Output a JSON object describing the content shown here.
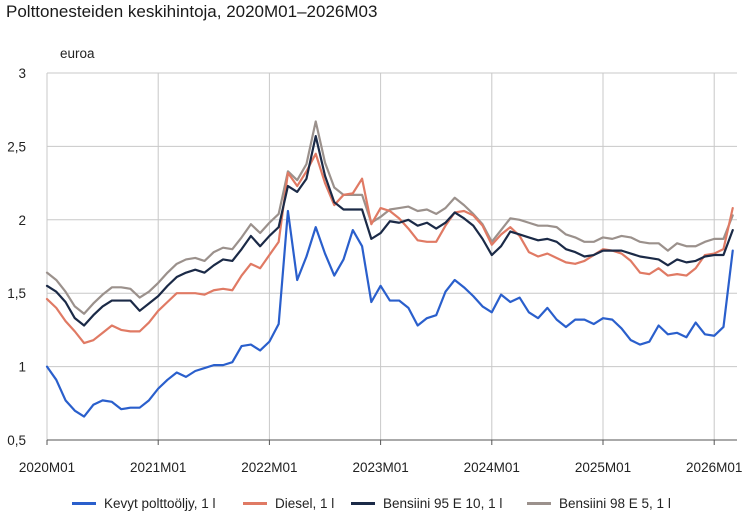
{
  "chart_data": {
    "type": "line",
    "title": "Polttonesteiden keskihintoja, 2020M01–2026M03",
    "ylabel": "euroa",
    "ylim": [
      0.5,
      3
    ],
    "yticks": [
      "0,5",
      "1",
      "1,5",
      "2",
      "2,5",
      "3"
    ],
    "xticks": [
      "2020M01",
      "2021M01",
      "2022M01",
      "2023M01",
      "2024M01",
      "2025M01",
      "2026M01"
    ],
    "grid": "vertical and horizontal",
    "legend_position": "bottom",
    "x": [
      "2020M01",
      "2020M02",
      "2020M03",
      "2020M04",
      "2020M05",
      "2020M06",
      "2020M07",
      "2020M08",
      "2020M09",
      "2020M10",
      "2020M11",
      "2020M12",
      "2021M01",
      "2021M02",
      "2021M03",
      "2021M04",
      "2021M05",
      "2021M06",
      "2021M07",
      "2021M08",
      "2021M09",
      "2021M10",
      "2021M11",
      "2021M12",
      "2022M01",
      "2022M02",
      "2022M03",
      "2022M04",
      "2022M05",
      "2022M06",
      "2022M07",
      "2022M08",
      "2022M09",
      "2022M10",
      "2022M11",
      "2022M12",
      "2023M01",
      "2023M02",
      "2023M03",
      "2023M04",
      "2023M05",
      "2023M06",
      "2023M07",
      "2023M08",
      "2023M09",
      "2023M10",
      "2023M11",
      "2023M12",
      "2024M01",
      "2024M02",
      "2024M03",
      "2024M04",
      "2024M05",
      "2024M06",
      "2024M07",
      "2024M08",
      "2024M09",
      "2024M10",
      "2024M11",
      "2024M12",
      "2025M01",
      "2025M02",
      "2025M03",
      "2025M04",
      "2025M05",
      "2025M06",
      "2025M07",
      "2025M08",
      "2025M09",
      "2025M10",
      "2025M11",
      "2025M12",
      "2026M01",
      "2026M02",
      "2026M03"
    ],
    "series": [
      {
        "name": "Kevyt polttoöljy, 1 l",
        "color": "#2a5fcc",
        "values": [
          1.0,
          0.91,
          0.77,
          0.7,
          0.66,
          0.74,
          0.77,
          0.76,
          0.71,
          0.72,
          0.72,
          0.77,
          0.85,
          0.91,
          0.96,
          0.93,
          0.97,
          0.99,
          1.01,
          1.01,
          1.03,
          1.14,
          1.15,
          1.11,
          1.17,
          1.29,
          2.06,
          1.59,
          1.75,
          1.95,
          1.77,
          1.62,
          1.73,
          1.93,
          1.82,
          1.44,
          1.55,
          1.45,
          1.45,
          1.4,
          1.28,
          1.33,
          1.35,
          1.51,
          1.59,
          1.54,
          1.48,
          1.41,
          1.37,
          1.49,
          1.44,
          1.47,
          1.37,
          1.33,
          1.4,
          1.32,
          1.27,
          1.32,
          1.32,
          1.29,
          1.33,
          1.32,
          1.26,
          1.18,
          1.15,
          1.17,
          1.28,
          1.22,
          1.23,
          1.2,
          1.3,
          1.22,
          1.21,
          1.27,
          1.79
        ]
      },
      {
        "name": "Diesel, 1 l",
        "color": "#e07a64",
        "values": [
          1.46,
          1.4,
          1.31,
          1.24,
          1.16,
          1.18,
          1.23,
          1.28,
          1.25,
          1.24,
          1.24,
          1.3,
          1.38,
          1.44,
          1.5,
          1.5,
          1.5,
          1.49,
          1.52,
          1.53,
          1.52,
          1.62,
          1.7,
          1.67,
          1.76,
          1.85,
          2.32,
          2.23,
          2.33,
          2.45,
          2.25,
          2.1,
          2.17,
          2.18,
          2.28,
          1.97,
          2.08,
          2.06,
          2.01,
          1.94,
          1.86,
          1.85,
          1.85,
          1.96,
          2.05,
          2.06,
          2.03,
          1.96,
          1.83,
          1.9,
          1.95,
          1.89,
          1.78,
          1.75,
          1.77,
          1.74,
          1.71,
          1.7,
          1.72,
          1.76,
          1.8,
          1.79,
          1.77,
          1.72,
          1.64,
          1.63,
          1.67,
          1.62,
          1.63,
          1.62,
          1.67,
          1.76,
          1.77,
          1.8,
          2.08
        ]
      },
      {
        "name": "Bensiini 95 E 10, 1 l",
        "color": "#1b2a47",
        "values": [
          1.55,
          1.51,
          1.44,
          1.33,
          1.28,
          1.35,
          1.41,
          1.45,
          1.45,
          1.45,
          1.38,
          1.43,
          1.48,
          1.55,
          1.61,
          1.64,
          1.66,
          1.64,
          1.69,
          1.73,
          1.72,
          1.8,
          1.89,
          1.82,
          1.89,
          1.95,
          2.23,
          2.19,
          2.28,
          2.57,
          2.3,
          2.12,
          2.07,
          2.07,
          2.07,
          1.87,
          1.91,
          1.99,
          1.98,
          2.0,
          1.96,
          1.98,
          1.94,
          1.98,
          2.05,
          2.01,
          1.96,
          1.87,
          1.76,
          1.82,
          1.92,
          1.9,
          1.88,
          1.86,
          1.87,
          1.85,
          1.8,
          1.78,
          1.75,
          1.76,
          1.79,
          1.79,
          1.79,
          1.77,
          1.75,
          1.74,
          1.73,
          1.69,
          1.73,
          1.71,
          1.72,
          1.75,
          1.76,
          1.76,
          1.93
        ]
      },
      {
        "name": "Bensiini 98 E 5, 1 l",
        "color": "#9b918c",
        "values": [
          1.64,
          1.59,
          1.51,
          1.41,
          1.36,
          1.43,
          1.49,
          1.54,
          1.54,
          1.53,
          1.47,
          1.51,
          1.57,
          1.64,
          1.7,
          1.73,
          1.74,
          1.72,
          1.78,
          1.81,
          1.8,
          1.88,
          1.97,
          1.91,
          1.98,
          2.04,
          2.33,
          2.27,
          2.38,
          2.67,
          2.39,
          2.22,
          2.17,
          2.17,
          2.17,
          1.98,
          2.02,
          2.07,
          2.08,
          2.09,
          2.06,
          2.07,
          2.04,
          2.08,
          2.15,
          2.1,
          2.04,
          1.97,
          1.85,
          1.93,
          2.01,
          2.0,
          1.98,
          1.96,
          1.96,
          1.95,
          1.9,
          1.88,
          1.85,
          1.85,
          1.88,
          1.87,
          1.89,
          1.88,
          1.85,
          1.84,
          1.84,
          1.79,
          1.84,
          1.82,
          1.82,
          1.85,
          1.87,
          1.87,
          2.03
        ]
      }
    ]
  }
}
